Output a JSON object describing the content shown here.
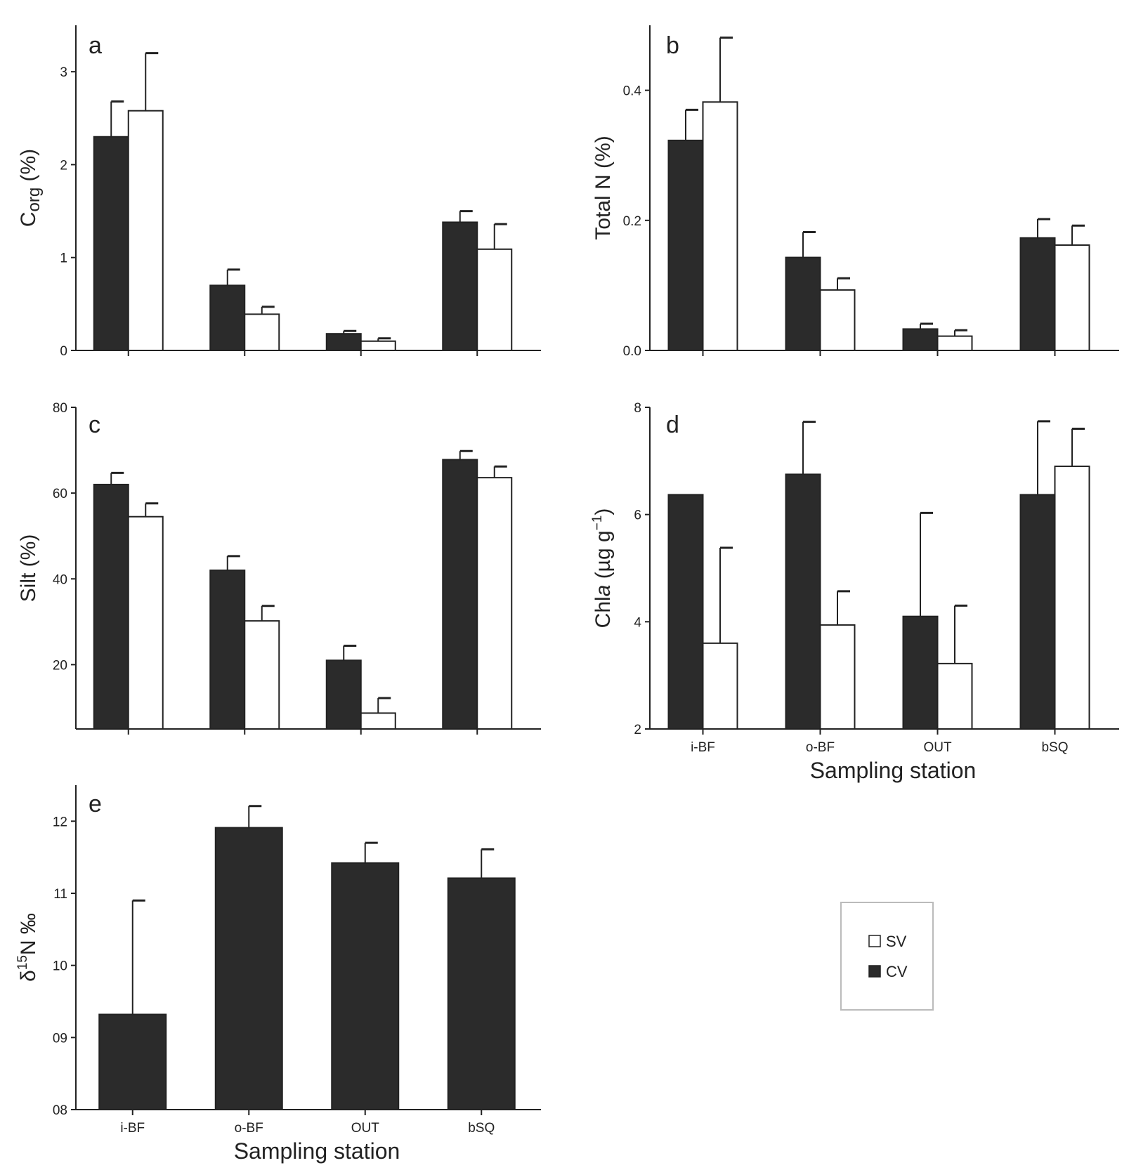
{
  "colors": {
    "cv": "#2b2b2b",
    "sv": "#ffffff",
    "axis": "#222222",
    "legend_border": "#bbbbbb"
  },
  "legend": {
    "placement": "right-middle",
    "entries": [
      {
        "key": "sv",
        "label": "SV"
      },
      {
        "key": "cv",
        "label": "CV"
      }
    ]
  },
  "chart_data": [
    {
      "id": "a",
      "type": "bar",
      "panel_label": "a",
      "ylabel_main": "C",
      "ylabel_sub": "org",
      "ylabel_tail": " (%)",
      "xlabel": "",
      "categories": [
        "i-BF",
        "o-BF",
        "OUT",
        "bSQ"
      ],
      "show_category_labels": false,
      "ylim": [
        0,
        3.5
      ],
      "yticks": [
        0,
        1,
        2,
        3
      ],
      "ytick_labels": [
        "0",
        "1",
        "2",
        "3"
      ],
      "series": [
        {
          "key": "cv",
          "values": [
            2.3,
            0.7,
            0.18,
            1.38
          ],
          "errors": [
            0.38,
            0.17,
            0.03,
            0.12
          ]
        },
        {
          "key": "sv",
          "values": [
            2.58,
            0.39,
            0.1,
            1.09
          ],
          "errors": [
            0.62,
            0.08,
            0.03,
            0.27
          ]
        }
      ]
    },
    {
      "id": "b",
      "type": "bar",
      "panel_label": "b",
      "ylabel": "Total N (%)",
      "xlabel": "",
      "categories": [
        "i-BF",
        "o-BF",
        "OUT",
        "bSQ"
      ],
      "show_category_labels": false,
      "ylim": [
        0,
        0.5
      ],
      "yticks": [
        0,
        0.2,
        0.4
      ],
      "ytick_labels": [
        "0.0",
        "0.2",
        "0.4"
      ],
      "series": [
        {
          "key": "cv",
          "values": [
            0.323,
            0.143,
            0.033,
            0.173
          ],
          "errors": [
            0.047,
            0.039,
            0.008,
            0.029
          ]
        },
        {
          "key": "sv",
          "values": [
            0.382,
            0.093,
            0.022,
            0.162
          ],
          "errors": [
            0.099,
            0.018,
            0.009,
            0.03
          ]
        }
      ]
    },
    {
      "id": "c",
      "type": "bar",
      "panel_label": "c",
      "ylabel": "Silt (%)",
      "xlabel": "",
      "categories": [
        "i-BF",
        "o-BF",
        "OUT",
        "bSQ"
      ],
      "show_category_labels": false,
      "ylim": [
        5,
        80
      ],
      "yticks": [
        20,
        40,
        60,
        80
      ],
      "ytick_labels": [
        "20",
        "40",
        "60",
        "80"
      ],
      "series": [
        {
          "key": "cv",
          "values": [
            62,
            42,
            21,
            67.8
          ],
          "errors": [
            2.7,
            3.3,
            3.4,
            2.0
          ]
        },
        {
          "key": "sv",
          "values": [
            54.5,
            30.2,
            8.7,
            63.6
          ],
          "errors": [
            3.1,
            3.5,
            3.5,
            2.6
          ]
        }
      ]
    },
    {
      "id": "d",
      "type": "bar",
      "panel_label": "d",
      "ylabel_pre": "Chl",
      "ylabel_ital": "a",
      "ylabel_post": " (µg g",
      "ylabel_sup": "−1",
      "ylabel_end": ")",
      "xlabel": "Sampling station",
      "categories": [
        "i-BF",
        "o-BF",
        "OUT",
        "bSQ"
      ],
      "show_category_labels": true,
      "ylim": [
        2,
        8
      ],
      "yticks": [
        2,
        4,
        6,
        8
      ],
      "ytick_labels": [
        "2",
        "4",
        "6",
        "8"
      ],
      "series": [
        {
          "key": "cv",
          "values": [
            6.37,
            6.75,
            4.1,
            6.37
          ],
          "errors": [
            0,
            0.98,
            1.93,
            1.37
          ]
        },
        {
          "key": "sv",
          "values": [
            3.6,
            3.94,
            3.22,
            6.9
          ],
          "errors": [
            1.78,
            0.63,
            1.08,
            0.7
          ]
        }
      ]
    },
    {
      "id": "e",
      "type": "bar",
      "panel_label": "e",
      "ylabel_pre": "δ",
      "ylabel_sup": "15",
      "ylabel_post": "N ‰",
      "xlabel": "Sampling station",
      "categories": [
        "i-BF",
        "o-BF",
        "OUT",
        "bSQ"
      ],
      "show_category_labels": true,
      "ylim": [
        8,
        12.5
      ],
      "yticks": [
        8,
        9,
        10,
        11,
        12
      ],
      "ytick_labels": [
        "08",
        "09",
        "10",
        "11",
        "12"
      ],
      "series": [
        {
          "key": "cv",
          "values": [
            9.32,
            11.91,
            11.42,
            11.21
          ],
          "errors": [
            1.58,
            0.3,
            0.28,
            0.4
          ]
        }
      ]
    }
  ]
}
